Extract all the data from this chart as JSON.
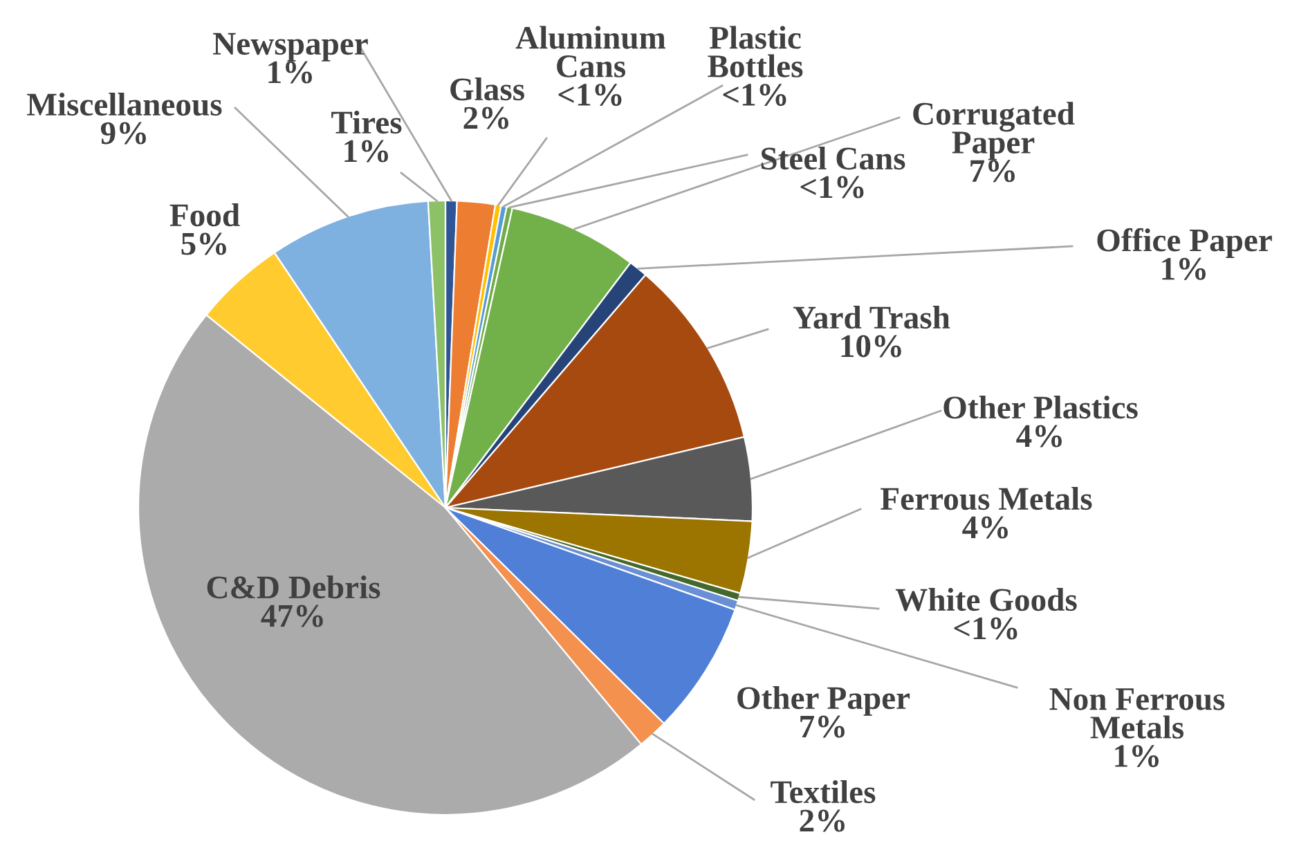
{
  "chart_data": {
    "type": "pie",
    "categories": [
      "Newspaper",
      "Glass",
      "Aluminum Cans",
      "Plastic Bottles",
      "Steel Cans",
      "Corrugated Paper",
      "Office Paper",
      "Yard Trash",
      "Other Plastics",
      "Ferrous Metals",
      "White Goods",
      "Non Ferrous Metals",
      "Other Paper",
      "Textiles",
      "C&D Debris",
      "Food",
      "Miscellaneous",
      "Tires"
    ],
    "values": [
      0.6,
      2.0,
      0.3,
      0.3,
      0.3,
      6.8,
      1.0,
      10.0,
      4.4,
      3.8,
      0.4,
      0.5,
      7.0,
      1.6,
      46.8,
      4.8,
      8.5,
      0.9
    ],
    "value_labels": [
      "1%",
      "2%",
      "<1%",
      "<1%",
      "<1%",
      "7%",
      "1%",
      "10%",
      "4%",
      "4%",
      "<1%",
      "1%",
      "7%",
      "2%",
      "47%",
      "5%",
      "9%",
      "1%"
    ],
    "colors": [
      "#2f5597",
      "#ed7d31",
      "#ffc000",
      "#5b9bd5",
      "#70ad47",
      "#72b04a",
      "#264478",
      "#a64a10",
      "#595959",
      "#9c7400",
      "#43682b",
      "#6a8fd4",
      "#4f7fd6",
      "#f4914f",
      "#ababab",
      "#ffcb2f",
      "#7fb1e0",
      "#8cc168"
    ],
    "legend": false
  }
}
